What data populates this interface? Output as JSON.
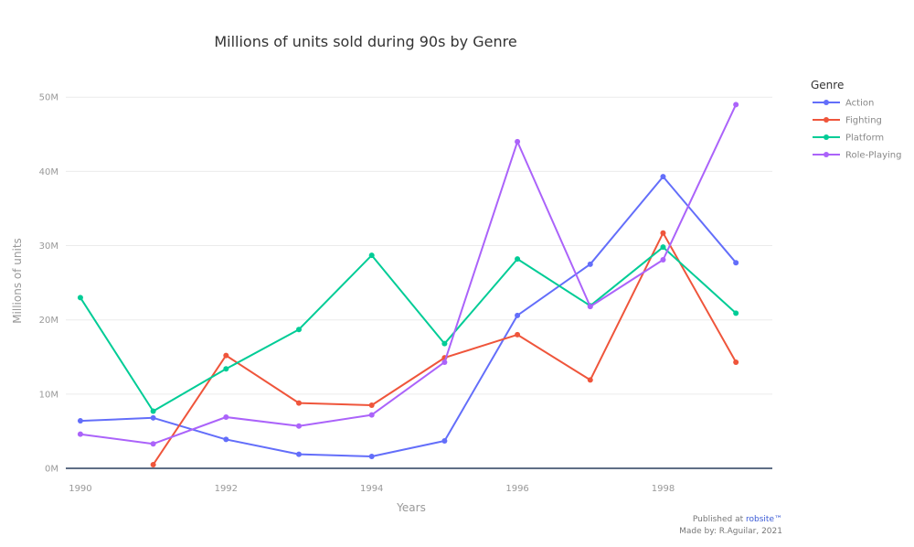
{
  "chart_data": {
    "type": "line",
    "title": "Millions of units sold during 90s by Genre",
    "xlabel": "Years",
    "ylabel": "Millions of units",
    "x": [
      1990,
      1991,
      1992,
      1993,
      1994,
      1995,
      1996,
      1997,
      1998,
      1999
    ],
    "x_ticks": [
      "1990",
      "1992",
      "1994",
      "1996",
      "1998"
    ],
    "x_tick_values": [
      1990,
      1992,
      1994,
      1996,
      1998
    ],
    "y_ticks": [
      "0M",
      "10M",
      "20M",
      "30M",
      "40M",
      "50M"
    ],
    "y_tick_values": [
      0,
      10,
      20,
      30,
      40,
      50
    ],
    "xlim": [
      1989.8,
      1999.5
    ],
    "ylim": [
      0,
      52
    ],
    "grid": "horizontal",
    "legend_title": "Genre",
    "legend_position": "top-right",
    "series": [
      {
        "name": "Action",
        "color": "#636efa",
        "values": [
          6.4,
          6.8,
          3.9,
          1.9,
          1.6,
          3.7,
          20.6,
          27.5,
          39.3,
          27.7
        ]
      },
      {
        "name": "Fighting",
        "color": "#ef553b",
        "values": [
          null,
          0.5,
          15.2,
          8.8,
          8.5,
          14.9,
          18.0,
          11.9,
          31.7,
          14.3
        ]
      },
      {
        "name": "Platform",
        "color": "#00cc96",
        "values": [
          23.0,
          7.7,
          13.4,
          18.7,
          28.7,
          16.8,
          28.2,
          21.9,
          29.8,
          20.9
        ]
      },
      {
        "name": "Role-Playing",
        "color": "#ab63fa",
        "values": [
          4.6,
          3.3,
          6.9,
          5.7,
          7.2,
          14.3,
          44.0,
          21.8,
          28.1,
          49.0
        ]
      }
    ]
  },
  "footer": {
    "published_prefix": "Published at ",
    "published_site": "robsite™",
    "made_by": "Made by: R.Aguilar, 2021"
  }
}
